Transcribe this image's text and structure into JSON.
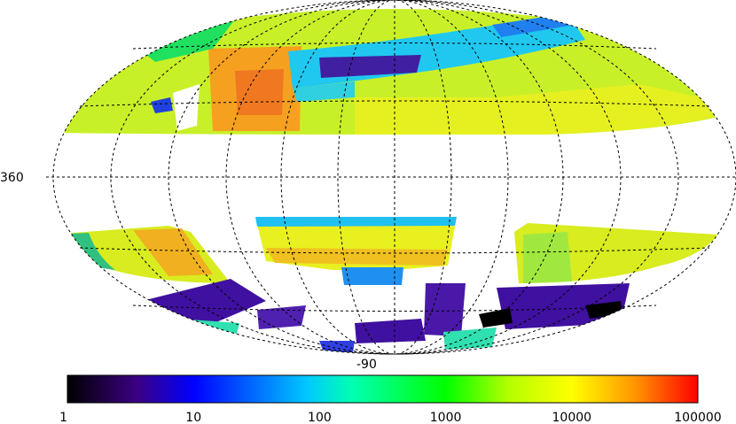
{
  "map": {
    "projection": "aitoff",
    "graticule_labels": {
      "longitude": "360",
      "latitude_south_pole": "-90"
    },
    "colormap": [
      "#000000",
      "#3b0082",
      "#0000ff",
      "#00c8ff",
      "#00ffb4",
      "#00ff00",
      "#b4ff00",
      "#ffff00",
      "#ff9600",
      "#ff0000"
    ]
  },
  "colorbar": {
    "scale": "log",
    "range": [
      1,
      100000
    ],
    "tick_labels": [
      "1",
      "10",
      "100",
      "1000",
      "10000",
      "100000"
    ]
  }
}
